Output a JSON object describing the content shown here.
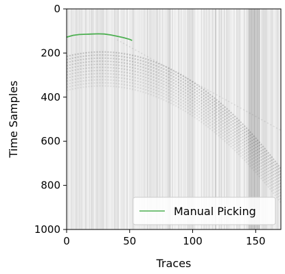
{
  "chart_data": {
    "type": "line",
    "background": "seismic-gather",
    "xlabel": "Traces",
    "ylabel": "Time Samples",
    "xlim": [
      0,
      170
    ],
    "ylim": [
      1000,
      0
    ],
    "y_inverted": true,
    "x_ticks": [
      "0",
      "50",
      "100",
      "150"
    ],
    "y_ticks": [
      "0",
      "200",
      "400",
      "600",
      "800",
      "1000"
    ],
    "grid": false,
    "legend_position": "lower-right",
    "series": [
      {
        "name": "Manual Picking",
        "color": "#4caf50",
        "x": [
          0,
          5,
          10,
          15,
          20,
          25,
          30,
          35,
          40,
          45,
          50,
          52
        ],
        "y": [
          128,
          120,
          116,
          115,
          114,
          113,
          114,
          118,
          124,
          130,
          138,
          143
        ]
      }
    ]
  }
}
